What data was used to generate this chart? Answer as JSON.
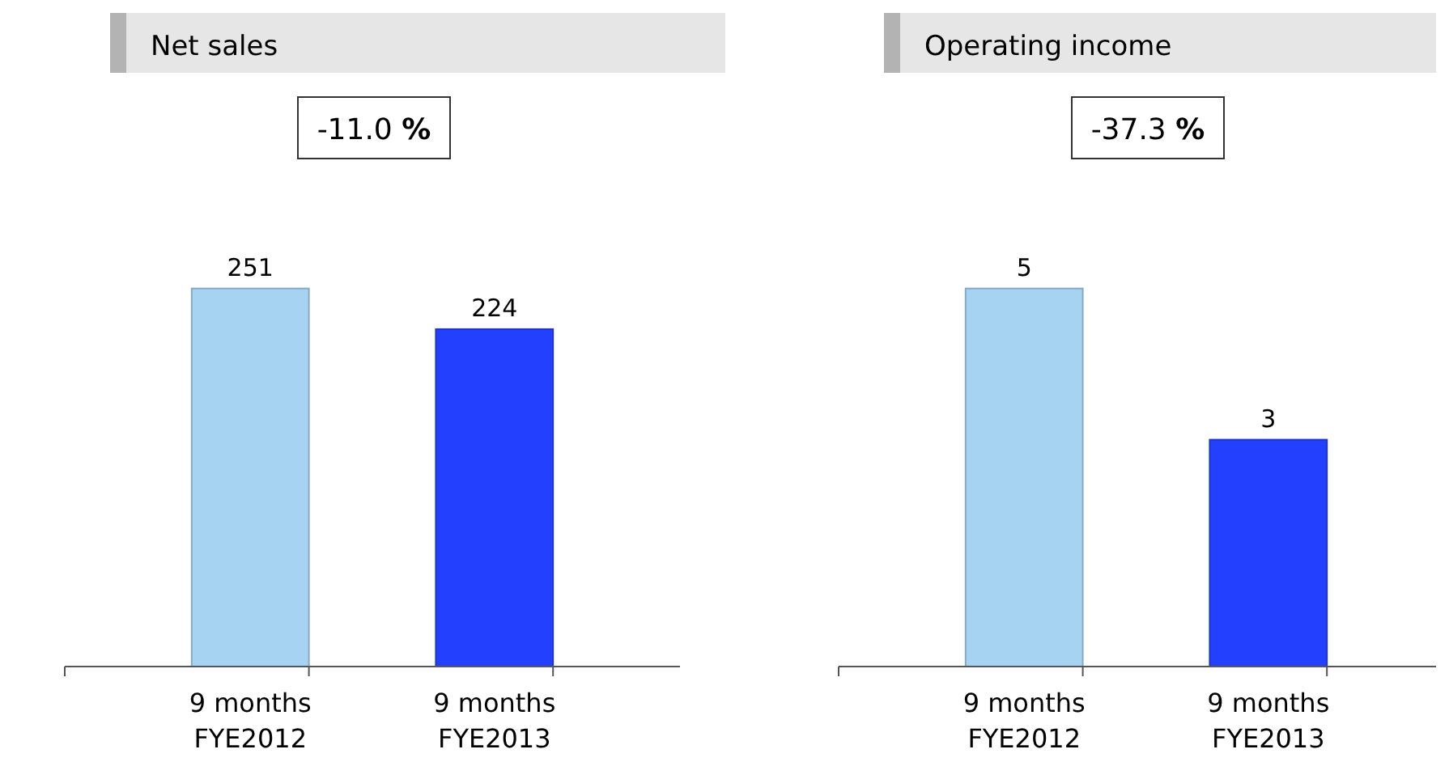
{
  "chart_data": [
    {
      "type": "bar",
      "title": "Net sales",
      "categories": [
        "9 months FYE2012",
        "9 months FYE2013"
      ],
      "values": [
        251,
        224
      ],
      "colors": [
        "#a6d3f2",
        "#2440ff"
      ],
      "data_labels": true,
      "annotations": [
        "-11.0 %"
      ]
    },
    {
      "type": "bar",
      "title": "Operating income",
      "categories": [
        "9 months FYE2012",
        "9 months FYE2013"
      ],
      "values": [
        5,
        3
      ],
      "colors": [
        "#a6d3f2",
        "#2440ff"
      ],
      "data_labels": true,
      "annotations": [
        "-37.3 %"
      ]
    }
  ]
}
